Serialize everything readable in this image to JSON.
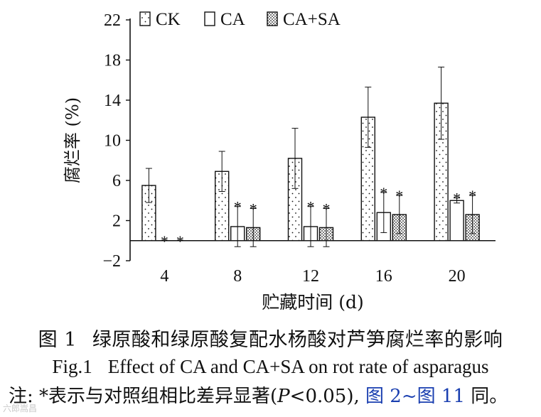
{
  "chart_data": {
    "type": "bar",
    "categories": [
      "4",
      "8",
      "12",
      "16",
      "20"
    ],
    "series": [
      {
        "name": "CK",
        "pattern": "dots-sparse",
        "values": [
          5.5,
          6.9,
          8.2,
          12.3,
          13.7
        ],
        "errors": [
          1.7,
          2.0,
          3.0,
          3.0,
          3.6
        ]
      },
      {
        "name": "CA",
        "pattern": "blank",
        "values": [
          0,
          1.4,
          1.4,
          2.8,
          4.0
        ],
        "errors": [
          0,
          2.0,
          2.0,
          2.0,
          0.25
        ]
      },
      {
        "name": "CA+SA",
        "pattern": "dots-dense",
        "values": [
          0,
          1.3,
          1.3,
          2.6,
          2.6
        ],
        "errors": [
          0,
          1.9,
          1.9,
          1.9,
          1.9
        ]
      }
    ],
    "significance": [
      {
        "category": "4",
        "series": "CA",
        "label": "*"
      },
      {
        "category": "4",
        "series": "CA+SA",
        "label": "*"
      },
      {
        "category": "8",
        "series": "CA",
        "label": "*"
      },
      {
        "category": "8",
        "series": "CA+SA",
        "label": "*"
      },
      {
        "category": "12",
        "series": "CA",
        "label": "*"
      },
      {
        "category": "12",
        "series": "CA+SA",
        "label": "*"
      },
      {
        "category": "16",
        "series": "CA",
        "label": "*"
      },
      {
        "category": "16",
        "series": "CA+SA",
        "label": "*"
      },
      {
        "category": "20",
        "series": "CA",
        "label": "*"
      },
      {
        "category": "20",
        "series": "CA+SA",
        "label": "*"
      }
    ],
    "xlabel": "贮藏时间 (d)",
    "ylabel": "腐烂率 (%)",
    "yticks": [
      -2,
      2,
      6,
      10,
      14,
      18,
      22
    ],
    "ytick_labels": [
      "−2",
      "2",
      "6",
      "10",
      "14",
      "18",
      "22"
    ],
    "ylim": [
      -2,
      22
    ],
    "baseline": 0,
    "legend_position": "top-left"
  },
  "caption": {
    "cn_label": "图 1",
    "cn_text": "绿原酸和绿原酸复配水杨酸对芦笋腐烂率的影响",
    "en_label": "Fig.1",
    "en_text": "Effect of CA and CA+SA on rot rate of asparagus",
    "note_prefix": "注: *表示与对照组相比差异显著(",
    "note_p": "P",
    "note_mid": "<0.05), ",
    "note_link1": "图 2",
    "note_tilde": "~",
    "note_link2": "图 11",
    "note_suffix": " 同。"
  },
  "watermark": "六郎嵩昌"
}
